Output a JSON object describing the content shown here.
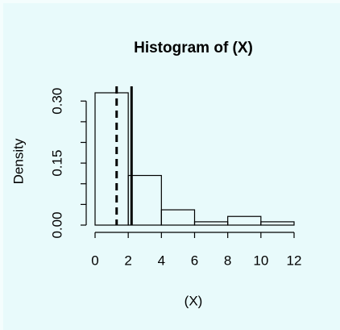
{
  "chart_data": {
    "type": "histogram",
    "title": "Histogram of (X)",
    "x_label": "(X)",
    "y_label": "Density",
    "bins": [
      0,
      2,
      4,
      6,
      8,
      10,
      12
    ],
    "values": [
      0.32,
      0.12,
      0.037,
      0.008,
      0.021,
      0.008
    ],
    "color": "#000000",
    "xlim": [
      0,
      12
    ],
    "xticks": [
      0,
      2,
      4,
      6,
      8,
      10,
      12
    ],
    "ylim": [
      0,
      0.32
    ],
    "yticks": [
      {
        "value": 0,
        "label": "0.00"
      },
      {
        "value": 0.15,
        "label": "0.15"
      },
      {
        "value": 0.3,
        "label": "0.30"
      }
    ],
    "yminor_ticks": [
      0.05,
      0.1,
      0.2,
      0.25
    ],
    "vlines": [
      {
        "x": 1.3,
        "style": "dashed"
      },
      {
        "x": 2.2,
        "style": "solid"
      }
    ]
  }
}
